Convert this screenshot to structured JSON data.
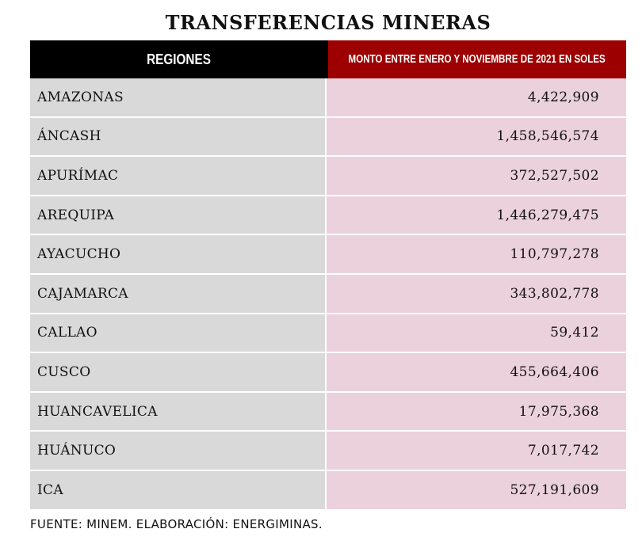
{
  "chart_data": {
    "type": "table",
    "title": "TRANSFERENCIAS MINERAS",
    "columns": [
      "REGIONES",
      "MONTO ENTRE ENERO Y NOVIEMBRE DE 2021 EN SOLES"
    ],
    "rows": [
      {
        "region": "AMAZONAS",
        "amount": "4,422,909"
      },
      {
        "region": "ÁNCASH",
        "amount": "1,458,546,574"
      },
      {
        "region": "APURÍMAC",
        "amount": "372,527,502"
      },
      {
        "region": "AREQUIPA",
        "amount": "1,446,279,475"
      },
      {
        "region": "AYACUCHO",
        "amount": "110,797,278"
      },
      {
        "region": "CAJAMARCA",
        "amount": "343,802,778"
      },
      {
        "region": "CALLAO",
        "amount": "59,412"
      },
      {
        "region": "CUSCO",
        "amount": "455,664,406"
      },
      {
        "region": "HUANCAVELICA",
        "amount": "17,975,368"
      },
      {
        "region": "HUÁNUCO",
        "amount": "7,017,742"
      },
      {
        "region": "ICA",
        "amount": "527,191,609"
      }
    ],
    "source": "FUENTE: MINEM. ELABORACIÓN: ENERGIMINAS.",
    "colors": {
      "header_left": "#000000",
      "header_right": "#9c0000",
      "region_cell": "#d9d9d9",
      "amount_cell": "#ebd1dc"
    }
  }
}
